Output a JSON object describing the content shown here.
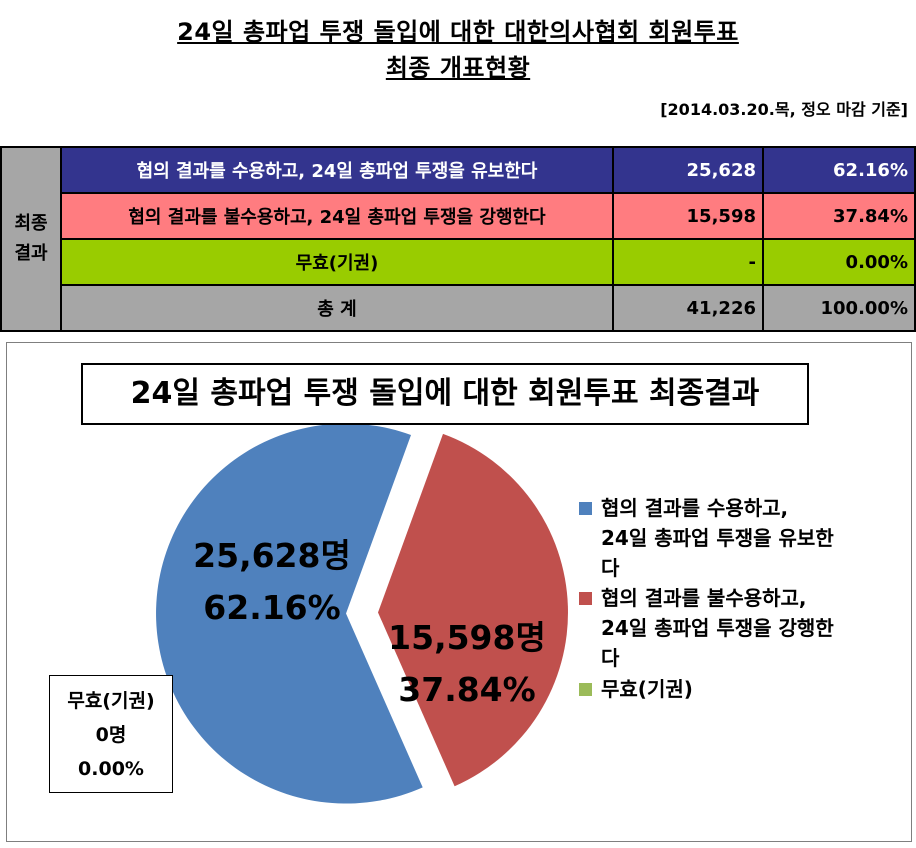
{
  "header": {
    "title_line1": "24일 총파업 투쟁 돌입에 대한 대한의사협회 회원투표",
    "title_line2": "최종 개표현황",
    "date": "[2014.03.20.목, 정오 마감 기준]"
  },
  "table": {
    "row_header_1": "최종",
    "row_header_2": "결과",
    "rows": [
      {
        "label": "협의 결과를 수용하고, 24일 총파업 투쟁을 유보한다",
        "count": "25,628",
        "percent": "62.16%"
      },
      {
        "label": "협의 결과를 불수용하고, 24일 총파업 투쟁을 강행한다",
        "count": "15,598",
        "percent": "37.84%"
      },
      {
        "label": "무효(기권)",
        "count": "-",
        "percent": "0.00%"
      },
      {
        "label": "총 계",
        "count": "41,226",
        "percent": "100.00%"
      }
    ]
  },
  "colors": {
    "accept": "#4f81bd",
    "reject": "#c0504d",
    "invalid": "#9bbb59"
  },
  "chart_data": {
    "type": "pie",
    "title": "24일 총파업 투쟁 돌입에  대한 회원투표 최종결과",
    "legend_position": "right",
    "series": [
      {
        "name": "협의 결과를 수용하고, 24일 총파업 투쟁을 유보한다",
        "value": 25628,
        "percent": 62.16,
        "label_count": "25,628명",
        "label_percent": "62.16%"
      },
      {
        "name": "협의 결과를 불수용하고, 24일 총파업 투쟁을 강행한다",
        "value": 15598,
        "percent": 37.84,
        "label_count": "15,598명",
        "label_percent": "37.84%"
      },
      {
        "name": "무효(기권)",
        "value": 0,
        "percent": 0.0,
        "label_count": "0명",
        "label_percent": "0.00%"
      }
    ],
    "legend": {
      "item1_line1": "협의 결과를 수용하고,",
      "item1_line2": "24일 총파업 투쟁을 유보한",
      "item1_line3": "다",
      "item2_line1": "협의 결과를 불수용하고,",
      "item2_line2": "24일 총파업 투쟁을 강행한",
      "item2_line3": "다",
      "item3_line1": "무효(기권)"
    },
    "invalid_callout": {
      "label": "무효(기권)",
      "count": "0명",
      "percent": "0.00%"
    }
  }
}
